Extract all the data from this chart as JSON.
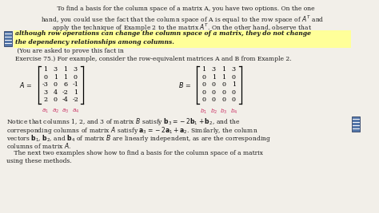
{
  "bg_color": "#f2efe9",
  "text_color": "#1a1a1a",
  "highlight_bg": "#ffff99",
  "col_label_color": "#cc3366",
  "note_icon_facecolor": "#5577aa",
  "note_icon_edgecolor": "#334466",
  "figsize": [
    4.74,
    2.67
  ],
  "dpi": 100,
  "fs_main": 5.5,
  "fs_mat": 5.8,
  "fs_label": 5.2,
  "para1_lines": [
    "    To find a basis for the column space of a matrix A, you have two options. On the one",
    "hand, you could use the fact that the column space of A is equal to the row space of $A^T$ and",
    "apply the technique of Example 2 to the matrix $A^T$. On the other hand, observe that"
  ],
  "highlight_lines": [
    "although row operations can change the column space of a matrix, they do not change",
    "the dependency relationships among columns."
  ],
  "post_highlight": " (You are asked to prove this fact in",
  "post_highlight2": "Exercise 75.) For example, consider the row-equivalent matrices A and B from Example 2.",
  "A_data": [
    [
      "1",
      "3",
      "1",
      "3"
    ],
    [
      "0",
      "1",
      "1",
      "0"
    ],
    [
      "-3",
      "0",
      "6",
      "-1"
    ],
    [
      "3",
      "4",
      "-2",
      "1"
    ],
    [
      "2",
      "0",
      "-4",
      "-2"
    ]
  ],
  "B_data": [
    [
      "1",
      "3",
      "1",
      "3"
    ],
    [
      "0",
      "1",
      "1",
      "0"
    ],
    [
      "0",
      "0",
      "0",
      "1"
    ],
    [
      "0",
      "0",
      "0",
      "0"
    ],
    [
      "0",
      "0",
      "0",
      "0"
    ]
  ],
  "col_labels_a": [
    "$a_1$",
    "$a_2$",
    "$a_3$",
    "$a_4$"
  ],
  "col_labels_b": [
    "$b_1$",
    "$b_2$",
    "$b_3$",
    "$b_4$"
  ],
  "bottom_lines": [
    "Notice that columns 1, 2, and 3 of matrix $B$ satisfy $\\mathbf{b}_3 = -2\\mathbf{b}_1 + \\mathbf{b}_2$, and the",
    "corresponding columns of matrix $A$ satisfy $\\mathbf{a}_3 = -2\\mathbf{a}_1 + \\mathbf{a}_2$. Similarly, the column",
    "vectors $\\mathbf{b}_1$, $\\mathbf{b}_2$, and $\\mathbf{b}_4$ of matrix $B$ are linearly independent, as are the corresponding",
    "columns of matrix $A$.",
    "    The next two examples show how to find a basis for the column space of a matrix",
    "using these methods."
  ]
}
